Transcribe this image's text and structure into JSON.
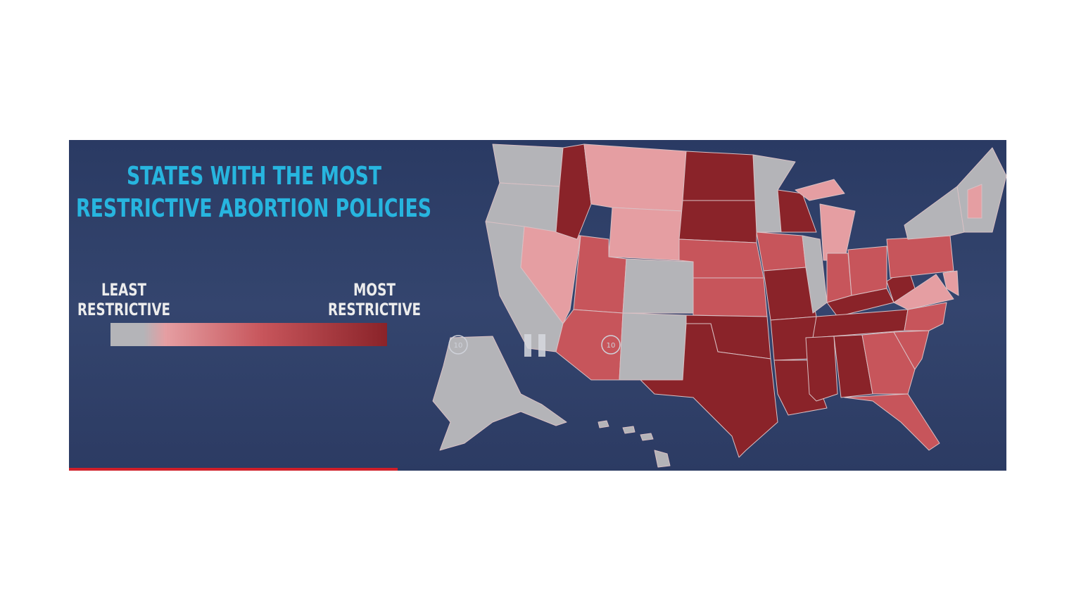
{
  "title": {
    "line1": "STATES WITH THE MOST",
    "line2": "RESTRICTIVE ABORTION POLICIES"
  },
  "legend": {
    "least": {
      "line1": "LEAST",
      "line2": "RESTRICTIVE"
    },
    "most": {
      "line1": "MOST",
      "line2": "RESTRICTIVE"
    }
  },
  "controls": {
    "rewind": "10",
    "forward": "10"
  }
}
